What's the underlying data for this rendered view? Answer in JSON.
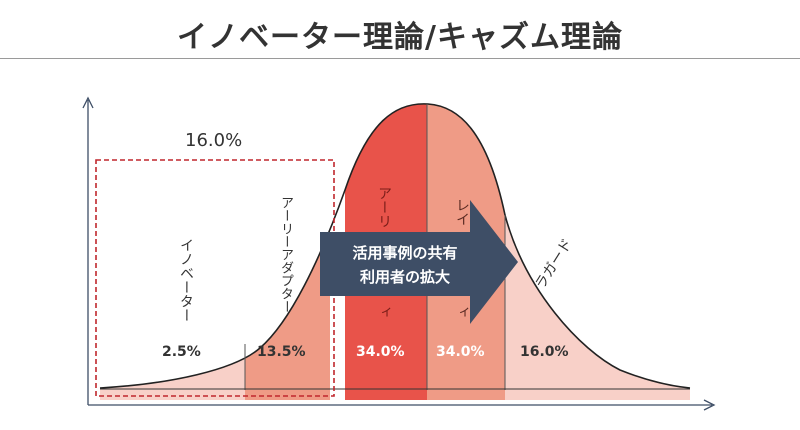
{
  "title": "イノベーター理論/キャズム理論",
  "bracket_label": "16.0%",
  "arrow": {
    "line1": "活用事例の共有",
    "line2": "利用者の拡大"
  },
  "segments": [
    {
      "name": "イノベーター",
      "share": "2.5%",
      "color": "#f8d0c8"
    },
    {
      "name": "アーリーアダプター",
      "share": "13.5%",
      "color": "#ef9b86"
    },
    {
      "name": "アーリーマジョリティ",
      "share": "34.0%",
      "color": "#e8534a"
    },
    {
      "name": "レイトマジョリティ",
      "share": "34.0%",
      "color": "#ef9b86"
    },
    {
      "name": "ラガード",
      "share": "16.0%",
      "color": "#f8d0c8"
    }
  ],
  "visible_vertical_text": {
    "early_majority_top": "アーリ",
    "early_majority_bottom": "ィ",
    "late_majority_top": "レイ",
    "late_majority_bottom": "ィ"
  },
  "colors": {
    "arrow": "#3e4e66",
    "bracket": "#c0272d",
    "curve": "#222222",
    "axis": "#3e4e66"
  }
}
